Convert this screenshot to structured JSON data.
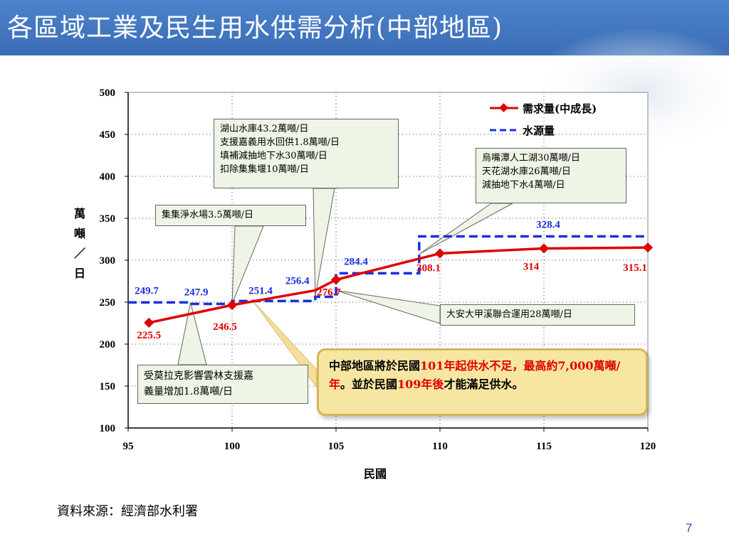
{
  "page": {
    "title": "各區域工業及民生用水供需分析(中部地區)",
    "source": "資料來源：經濟部水利署",
    "page_number": "7"
  },
  "colors": {
    "header": "#3a6db5",
    "demand": "#e00000",
    "supply": "#1a2fe0",
    "callout_bg": "#eef5e6",
    "note_bg": "#f7e6a2"
  },
  "callouts": {
    "c1": [
      "湖山水庫43.2萬噸/日",
      "支援嘉義用水回供1.8萬噸/日",
      "填補減抽地下水30萬噸/日",
      "扣除集集堰10萬噸/日"
    ],
    "c2": [
      "集集淨水場3.5萬噸/日"
    ],
    "c3": [
      "烏嘴潭人工湖30萬噸/日",
      "天花湖水庫26萬噸/日",
      "減抽地下水4萬噸/日"
    ],
    "c4": [
      "大安大甲溪聯合運用28萬噸/日"
    ],
    "c5": [
      "受莫拉克影響雲林支援嘉",
      "義量增加1.8萬噸/日"
    ]
  },
  "note": {
    "p1": "中部地區將於民國",
    "p2": "101年起供水不足，最高約7,000萬噸/年",
    "p3": "。並於民國",
    "p4": "109年後",
    "p5": "才能滿足供水。"
  },
  "chart_data": {
    "type": "line",
    "title": "",
    "xlabel": "民國",
    "ylabel": "萬噸／日",
    "xlim": [
      95,
      120
    ],
    "ylim": [
      100,
      500
    ],
    "xticks": [
      95,
      100,
      105,
      110,
      115,
      120
    ],
    "yticks": [
      100,
      150,
      200,
      250,
      300,
      350,
      400,
      450,
      500
    ],
    "legend_position": "top-right",
    "series": [
      {
        "name": "需求量(中成長)",
        "style": "solid-diamond",
        "color": "#e00000",
        "x": [
          96,
          100,
          104,
          105,
          110,
          115,
          120
        ],
        "y": [
          225.5,
          246.5,
          264,
          276.7,
          308.1,
          314,
          315.1
        ],
        "labels": [
          {
            "x": 96,
            "text": "225.5"
          },
          {
            "x": 100,
            "text": "246.5"
          },
          {
            "x": 105,
            "text": "276.7"
          },
          {
            "x": 110,
            "text": "308.1"
          },
          {
            "x": 115,
            "text": "314"
          },
          {
            "x": 120,
            "text": "315.1"
          }
        ]
      },
      {
        "name": "水源量",
        "style": "dashed-step",
        "color": "#1a2fe0",
        "points": [
          [
            95,
            249.7
          ],
          [
            98,
            249.7
          ],
          [
            98,
            247.9
          ],
          [
            100,
            247.9
          ],
          [
            100,
            251.4
          ],
          [
            104,
            251.4
          ],
          [
            104,
            256.4
          ],
          [
            105,
            256.4
          ],
          [
            105,
            284.4
          ],
          [
            109,
            284.4
          ],
          [
            109,
            328.4
          ],
          [
            120,
            328.4
          ]
        ],
        "labels": [
          {
            "x": 95,
            "y": 249.7,
            "text": "249.7"
          },
          {
            "x": 98,
            "y": 247.9,
            "text": "247.9"
          },
          {
            "x": 100,
            "y": 251.4,
            "text": "251.4"
          },
          {
            "x": 104,
            "y": 256.4,
            "text": "256.4"
          },
          {
            "x": 105,
            "y": 284.4,
            "text": "284.4"
          },
          {
            "x": 110,
            "y": 328.4,
            "text": "328.4"
          }
        ]
      }
    ]
  }
}
